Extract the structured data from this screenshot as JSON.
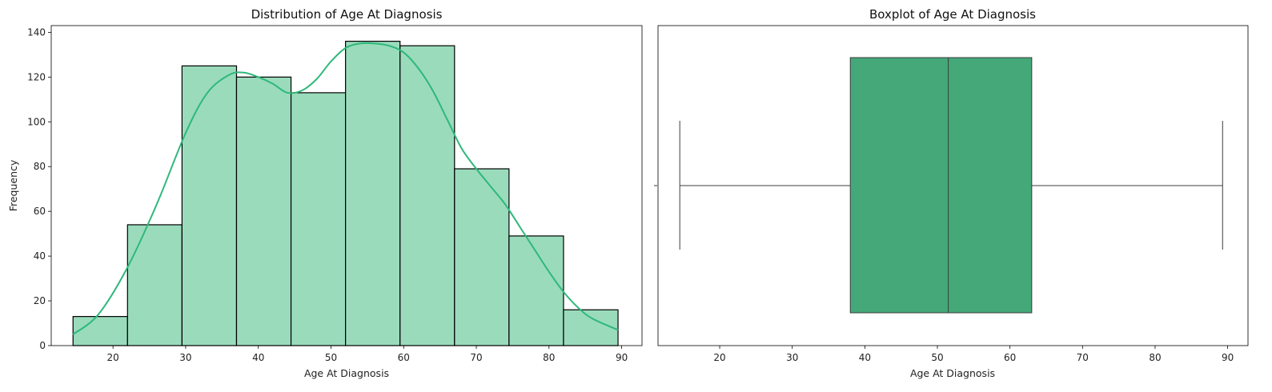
{
  "colors": {
    "bar_fill": "#9adbbc",
    "bar_edge": "#000000",
    "kde_line": "#2eb87a",
    "box_fill": "#44a878",
    "box_line": "#3c3c3c"
  },
  "chart_data": [
    {
      "type": "bar",
      "title": "Distribution of Age At Diagnosis",
      "xlabel": "Age At Diagnosis",
      "ylabel": "Frequency",
      "xlim": [
        11.5,
        92.8
      ],
      "ylim": [
        0,
        143
      ],
      "xticks": [
        20,
        30,
        40,
        50,
        60,
        70,
        80,
        90
      ],
      "yticks": [
        0,
        20,
        40,
        60,
        80,
        100,
        120,
        140
      ],
      "bin_edges": [
        14.5,
        22.0,
        29.5,
        37.0,
        44.5,
        52.0,
        59.5,
        67.0,
        74.5,
        82.0,
        89.5
      ],
      "values": [
        13,
        54,
        125,
        120,
        113,
        136,
        134,
        79,
        49,
        16
      ],
      "kde": {
        "x": [
          14.5,
          18,
          22,
          26,
          30,
          33,
          36,
          38,
          40,
          42,
          44,
          46,
          48,
          50,
          52,
          54,
          56,
          58,
          60,
          62,
          64,
          66,
          68,
          70,
          72,
          74,
          76,
          78,
          80,
          82,
          84,
          86,
          89.5
        ],
        "y": [
          5,
          14,
          35,
          63,
          95,
          113,
          121,
          122,
          120,
          117,
          113,
          114,
          119,
          127,
          133,
          135,
          135,
          134,
          131,
          124,
          114,
          101,
          88,
          79,
          71,
          63,
          53,
          43,
          33,
          24,
          17,
          12,
          7
        ]
      },
      "grid": false
    },
    {
      "type": "box",
      "title": "Boxplot of Age At Diagnosis",
      "xlabel": "Age At Diagnosis",
      "xlim": [
        11.5,
        92.8
      ],
      "xticks": [
        20,
        30,
        40,
        50,
        60,
        70,
        80,
        90
      ],
      "stats": {
        "min": 14.5,
        "q1": 38.0,
        "median": 51.5,
        "q3": 63.0,
        "max": 89.3
      },
      "grid": false
    }
  ]
}
